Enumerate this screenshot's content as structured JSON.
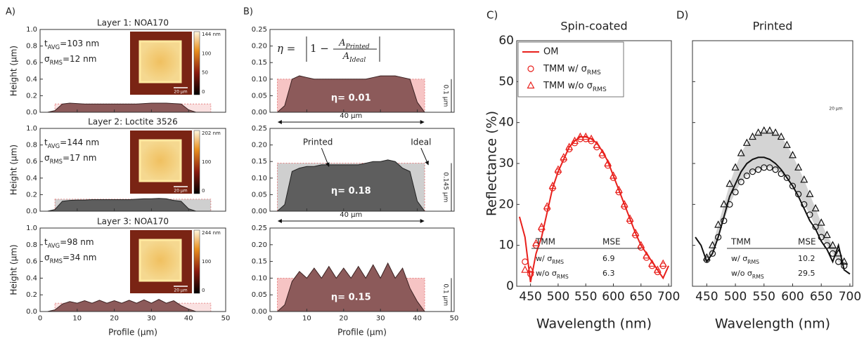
{
  "chart_data": [
    {
      "panel_label": "A)",
      "type": "area",
      "title": "Layer 1: NOA170",
      "ylabel": "Height (µm)",
      "x": [
        0,
        2,
        4,
        6,
        8,
        10,
        12,
        14,
        16,
        18,
        20,
        22,
        24,
        26,
        28,
        30,
        32,
        34,
        36,
        38,
        40,
        42,
        44,
        46,
        48,
        50
      ],
      "values": [
        0,
        0,
        0.02,
        0.1,
        0.11,
        0.105,
        0.1,
        0.1,
        0.1,
        0.1,
        0.1,
        0.1,
        0.1,
        0.1,
        0.105,
        0.11,
        0.11,
        0.11,
        0.105,
        0.1,
        0.03,
        0,
        0,
        0,
        0,
        0
      ],
      "color": "#8c5a5a",
      "line_color": "#3b2222",
      "ideal": {
        "x": [
          4,
          46
        ],
        "value": 0.1,
        "color": "#f6c4c4"
      },
      "xlim": [
        0,
        50
      ],
      "ylim": [
        0,
        1
      ],
      "xticks": [
        0,
        10,
        20,
        30,
        40,
        50
      ],
      "yticks": [
        {
          "value": 0,
          "label": "0.0"
        },
        0.2,
        0.4,
        0.6,
        0.8,
        {
          "value": 1,
          "label": "1.0"
        }
      ],
      "xtick_labels": false,
      "t_avg": [
        "t",
        "AVG",
        "=103 nm"
      ],
      "sigma": [
        "σ",
        "RMS",
        "=12 nm"
      ],
      "inset": {
        "scale_labels": [
          "144 nm",
          "100",
          "50",
          "0"
        ],
        "scalebar": "20 µm"
      }
    },
    {
      "type": "area",
      "title": "Layer 2: Loctite 3526",
      "ylabel": "Height (µm)",
      "x": [
        0,
        2,
        4,
        6,
        8,
        10,
        12,
        14,
        16,
        18,
        20,
        22,
        24,
        26,
        28,
        30,
        32,
        34,
        36,
        38,
        40,
        42,
        44,
        46,
        48,
        50
      ],
      "values": [
        0,
        0,
        0.02,
        0.12,
        0.13,
        0.135,
        0.135,
        0.14,
        0.14,
        0.14,
        0.14,
        0.14,
        0.14,
        0.145,
        0.15,
        0.15,
        0.155,
        0.15,
        0.13,
        0.12,
        0.03,
        0,
        0,
        0,
        0,
        0
      ],
      "color": "#5e5e5e",
      "line_color": "#222222",
      "ideal": {
        "x": [
          4,
          46
        ],
        "value": 0.145,
        "color": "#cfcfcf"
      },
      "xlim": [
        0,
        50
      ],
      "ylim": [
        0,
        1
      ],
      "xticks": [
        0,
        10,
        20,
        30,
        40,
        50
      ],
      "yticks": [
        {
          "value": 0,
          "label": "0.0"
        },
        0.2,
        0.4,
        0.6,
        0.8,
        {
          "value": 1,
          "label": "1.0"
        }
      ],
      "xtick_labels": false,
      "t_avg": [
        "t",
        "AVG",
        "=144 nm"
      ],
      "sigma": [
        "σ",
        "RMS",
        "=17 nm"
      ],
      "inset": {
        "scale_labels": [
          "202 nm",
          "100",
          "0"
        ],
        "scalebar": "20 µm"
      }
    },
    {
      "type": "area",
      "title": "Layer 3: NOA170",
      "ylabel": "Height (µm)",
      "xlabel": "Profile (µm)",
      "x": [
        0,
        2,
        4,
        6,
        8,
        10,
        12,
        14,
        16,
        18,
        20,
        22,
        24,
        26,
        28,
        30,
        32,
        34,
        36,
        38,
        40,
        42,
        44,
        46,
        48,
        50
      ],
      "values": [
        0,
        0,
        0.02,
        0.09,
        0.12,
        0.1,
        0.13,
        0.1,
        0.135,
        0.1,
        0.13,
        0.1,
        0.135,
        0.1,
        0.14,
        0.1,
        0.145,
        0.1,
        0.13,
        0.07,
        0.03,
        0,
        0,
        0,
        0,
        0
      ],
      "color": "#8c5a5a",
      "line_color": "#3b2222",
      "ideal": {
        "x": [
          4,
          46
        ],
        "value": 0.1,
        "color": "#f6c4c4"
      },
      "xlim": [
        0,
        50
      ],
      "ylim": [
        0,
        1
      ],
      "xticks": [
        0,
        10,
        20,
        30,
        40,
        50
      ],
      "yticks": [
        {
          "value": 0,
          "label": "0.0"
        },
        0.2,
        0.4,
        0.6,
        0.8,
        {
          "value": 1,
          "label": "1.0"
        }
      ],
      "xtick_labels": true,
      "t_avg": [
        "t",
        "AVG",
        "=98 nm"
      ],
      "sigma": [
        "σ",
        "RMS",
        "=34 nm"
      ],
      "inset": {
        "scale_labels": [
          "244 nm",
          "100",
          "0"
        ],
        "scalebar": "20 µm"
      }
    },
    {
      "panel_label": "B)",
      "type": "area",
      "x": [
        0,
        2,
        4,
        6,
        8,
        10,
        12,
        14,
        16,
        18,
        20,
        22,
        24,
        26,
        28,
        30,
        32,
        34,
        36,
        38,
        40,
        42,
        44,
        46,
        48,
        50
      ],
      "values": [
        0,
        0,
        0.02,
        0.1,
        0.11,
        0.105,
        0.1,
        0.1,
        0.1,
        0.1,
        0.1,
        0.1,
        0.1,
        0.1,
        0.105,
        0.11,
        0.11,
        0.11,
        0.105,
        0.1,
        0.03,
        0,
        0,
        0,
        0,
        0
      ],
      "color": "#8c5a5a",
      "line_color": "#3b2222",
      "ideal": {
        "x": [
          2,
          42
        ],
        "value": 0.1,
        "color": "#f6c4c4"
      },
      "xlim": [
        0,
        50
      ],
      "ylim": [
        0,
        0.25
      ],
      "xticks": [
        0,
        10,
        20,
        30,
        40,
        50
      ],
      "yticks": [
        {
          "value": 0,
          "label": "0.00"
        },
        0.05,
        {
          "value": 0.1,
          "label": "0.10"
        },
        0.15,
        {
          "value": 0.2,
          "label": "0.20"
        },
        0.25
      ],
      "xtick_labels": false,
      "formula": {
        "lhs": "η =",
        "term": "1 −",
        "num": [
          "A",
          "Printed"
        ],
        "den": [
          "A",
          "Ideal"
        ]
      },
      "eta": "η= 0.01",
      "dim_v": "0.1 µm",
      "dim_h": "40 µm"
    },
    {
      "type": "area",
      "x": [
        0,
        2,
        4,
        6,
        8,
        10,
        12,
        14,
        16,
        18,
        20,
        22,
        24,
        26,
        28,
        30,
        32,
        34,
        36,
        38,
        40,
        42,
        44,
        46,
        48,
        50
      ],
      "values": [
        0,
        0,
        0.02,
        0.12,
        0.13,
        0.135,
        0.135,
        0.14,
        0.14,
        0.14,
        0.14,
        0.14,
        0.14,
        0.145,
        0.15,
        0.15,
        0.155,
        0.15,
        0.13,
        0.12,
        0.03,
        0,
        0,
        0,
        0,
        0
      ],
      "color": "#5e5e5e",
      "line_color": "#222222",
      "ideal": {
        "x": [
          2,
          42
        ],
        "value": 0.145,
        "color": "#cfcfcf"
      },
      "xlim": [
        0,
        50
      ],
      "ylim": [
        0,
        0.25
      ],
      "xticks": [
        0,
        10,
        20,
        30,
        40,
        50
      ],
      "yticks": [
        {
          "value": 0,
          "label": "0.00"
        },
        0.05,
        {
          "value": 0.1,
          "label": "0.10"
        },
        0.15,
        {
          "value": 0.2,
          "label": "0.20"
        },
        0.25
      ],
      "xtick_labels": false,
      "eta": "η= 0.18",
      "dim_v": "0.145 µm",
      "dim_h": "40 µm",
      "callouts": {
        "printed": "Printed",
        "ideal": "Ideal"
      }
    },
    {
      "type": "area",
      "xlabel": "Profile (µm)",
      "x": [
        0,
        2,
        4,
        6,
        8,
        10,
        12,
        14,
        16,
        18,
        20,
        22,
        24,
        26,
        28,
        30,
        32,
        34,
        36,
        38,
        40,
        42,
        44,
        46,
        48,
        50
      ],
      "values": [
        0,
        0,
        0.02,
        0.09,
        0.12,
        0.1,
        0.13,
        0.1,
        0.135,
        0.1,
        0.13,
        0.1,
        0.135,
        0.1,
        0.14,
        0.1,
        0.145,
        0.1,
        0.13,
        0.07,
        0.03,
        0,
        0,
        0,
        0,
        0
      ],
      "color": "#8c5a5a",
      "line_color": "#3b2222",
      "ideal": {
        "x": [
          2,
          42
        ],
        "value": 0.1,
        "color": "#f6c4c4"
      },
      "xlim": [
        0,
        50
      ],
      "ylim": [
        0,
        0.25
      ],
      "xticks": [
        0,
        10,
        20,
        30,
        40,
        50
      ],
      "yticks": [
        {
          "value": 0,
          "label": "0.00"
        },
        0.05,
        {
          "value": 0.1,
          "label": "0.10"
        },
        0.15,
        {
          "value": 0.2,
          "label": "0.20"
        },
        0.25
      ],
      "xtick_labels": true,
      "eta": "η= 0.15",
      "dim_v": "0.1 µm"
    },
    {
      "panel_label": "C)",
      "type": "line",
      "title": "Spin-coated",
      "ylabel": "Reflectance (%)",
      "xlabel": "Wavelength (nm)",
      "x": [
        430,
        440,
        450,
        460,
        470,
        480,
        490,
        500,
        510,
        520,
        530,
        540,
        550,
        560,
        570,
        580,
        590,
        600,
        610,
        620,
        630,
        640,
        650,
        660,
        670,
        680,
        690,
        700
      ],
      "series": [
        {
          "name": "OM",
          "color": "#e8201c",
          "style": "line",
          "values": [
            17,
            12,
            1,
            8,
            12,
            18,
            24,
            28,
            31,
            34,
            35.5,
            36.5,
            36.5,
            36,
            35,
            33,
            30.5,
            27,
            23.5,
            20,
            16.5,
            13,
            10,
            8,
            6,
            4,
            2,
            5
          ]
        },
        {
          "name": [
            "TMM w/ σ",
            "RMS"
          ],
          "color": "#e8201c",
          "style": "circle",
          "values": [
            null,
            6,
            3,
            10,
            14,
            19,
            24,
            28,
            31,
            33.5,
            35,
            36,
            36,
            35.5,
            34,
            32,
            29.5,
            26.5,
            23,
            19.5,
            16,
            12.5,
            9.5,
            7,
            5,
            3.5,
            5,
            null
          ]
        },
        {
          "name": [
            "TMM w/o σ",
            "RMS"
          ],
          "color": "#e8201c",
          "style": "triangle",
          "values": [
            null,
            4,
            4,
            10.5,
            14.5,
            19.5,
            24.5,
            28.5,
            31.5,
            34,
            35.5,
            36.5,
            36.5,
            36,
            34.5,
            32.5,
            30,
            27,
            23.5,
            20,
            16.5,
            13,
            10,
            7.5,
            5.5,
            4,
            5.5,
            null
          ]
        }
      ],
      "xlim": [
        425,
        705
      ],
      "ylim": [
        0,
        60
      ],
      "xticks": [
        450,
        500,
        550,
        600,
        650,
        700
      ],
      "yticks": [
        0,
        10,
        20,
        30,
        40,
        50,
        60
      ],
      "legend": "upper left",
      "table": {
        "header": [
          "TMM",
          "MSE"
        ],
        "rows": [
          [
            [
              "w/ σ",
              "RMS"
            ],
            "6.9"
          ],
          [
            [
              "w/o σ",
              "RMS"
            ],
            "6.3"
          ]
        ]
      }
    },
    {
      "panel_label": "D)",
      "type": "line",
      "title": "Printed",
      "xlabel": "Wavelength (nm)",
      "x": [
        430,
        440,
        450,
        460,
        470,
        480,
        490,
        500,
        510,
        520,
        530,
        540,
        550,
        560,
        570,
        580,
        590,
        600,
        610,
        620,
        630,
        640,
        650,
        660,
        670,
        680,
        690,
        700
      ],
      "series": [
        {
          "color": "#111111",
          "style": "line",
          "values": [
            12,
            10,
            6,
            8,
            12,
            17,
            22,
            25,
            28,
            30,
            31,
            31.5,
            31.5,
            31,
            30,
            28.5,
            26.5,
            24.5,
            22,
            19,
            16,
            14,
            11,
            9,
            6,
            10,
            4,
            3
          ]
        },
        {
          "color": "#111111",
          "style": "circle",
          "values": [
            null,
            null,
            6.5,
            8,
            12,
            16,
            20,
            23,
            25.5,
            27,
            28,
            28.5,
            29,
            29,
            28.5,
            27.5,
            26.5,
            24.5,
            22.5,
            20,
            17.5,
            14.5,
            12,
            10,
            8,
            6,
            5,
            null
          ]
        },
        {
          "color": "#111111",
          "style": "triangle",
          "values": [
            null,
            null,
            7,
            10,
            15,
            20,
            25,
            29,
            32.5,
            35,
            36.5,
            37.5,
            38,
            38,
            37.5,
            36.5,
            34.5,
            32,
            29,
            26,
            22.5,
            19,
            15.5,
            12.5,
            10,
            8,
            6,
            null
          ]
        }
      ],
      "fill_between": [
        1,
        2
      ],
      "fill_color": "#d4d4d4",
      "xlim": [
        425,
        705
      ],
      "ylim": [
        0,
        60
      ],
      "xticks": [
        450,
        500,
        550,
        600,
        650,
        700
      ],
      "yticks": [
        0,
        10,
        20,
        30,
        40,
        50,
        60
      ],
      "ytick_labels": false,
      "image_scalebar": "20 µm",
      "table": {
        "header": [
          "TMM",
          "MSE"
        ],
        "rows": [
          [
            [
              "w/ σ",
              "RMS"
            ],
            "10.2"
          ],
          [
            [
              "w/o σ",
              "RMS"
            ],
            "29.5"
          ]
        ]
      }
    }
  ]
}
